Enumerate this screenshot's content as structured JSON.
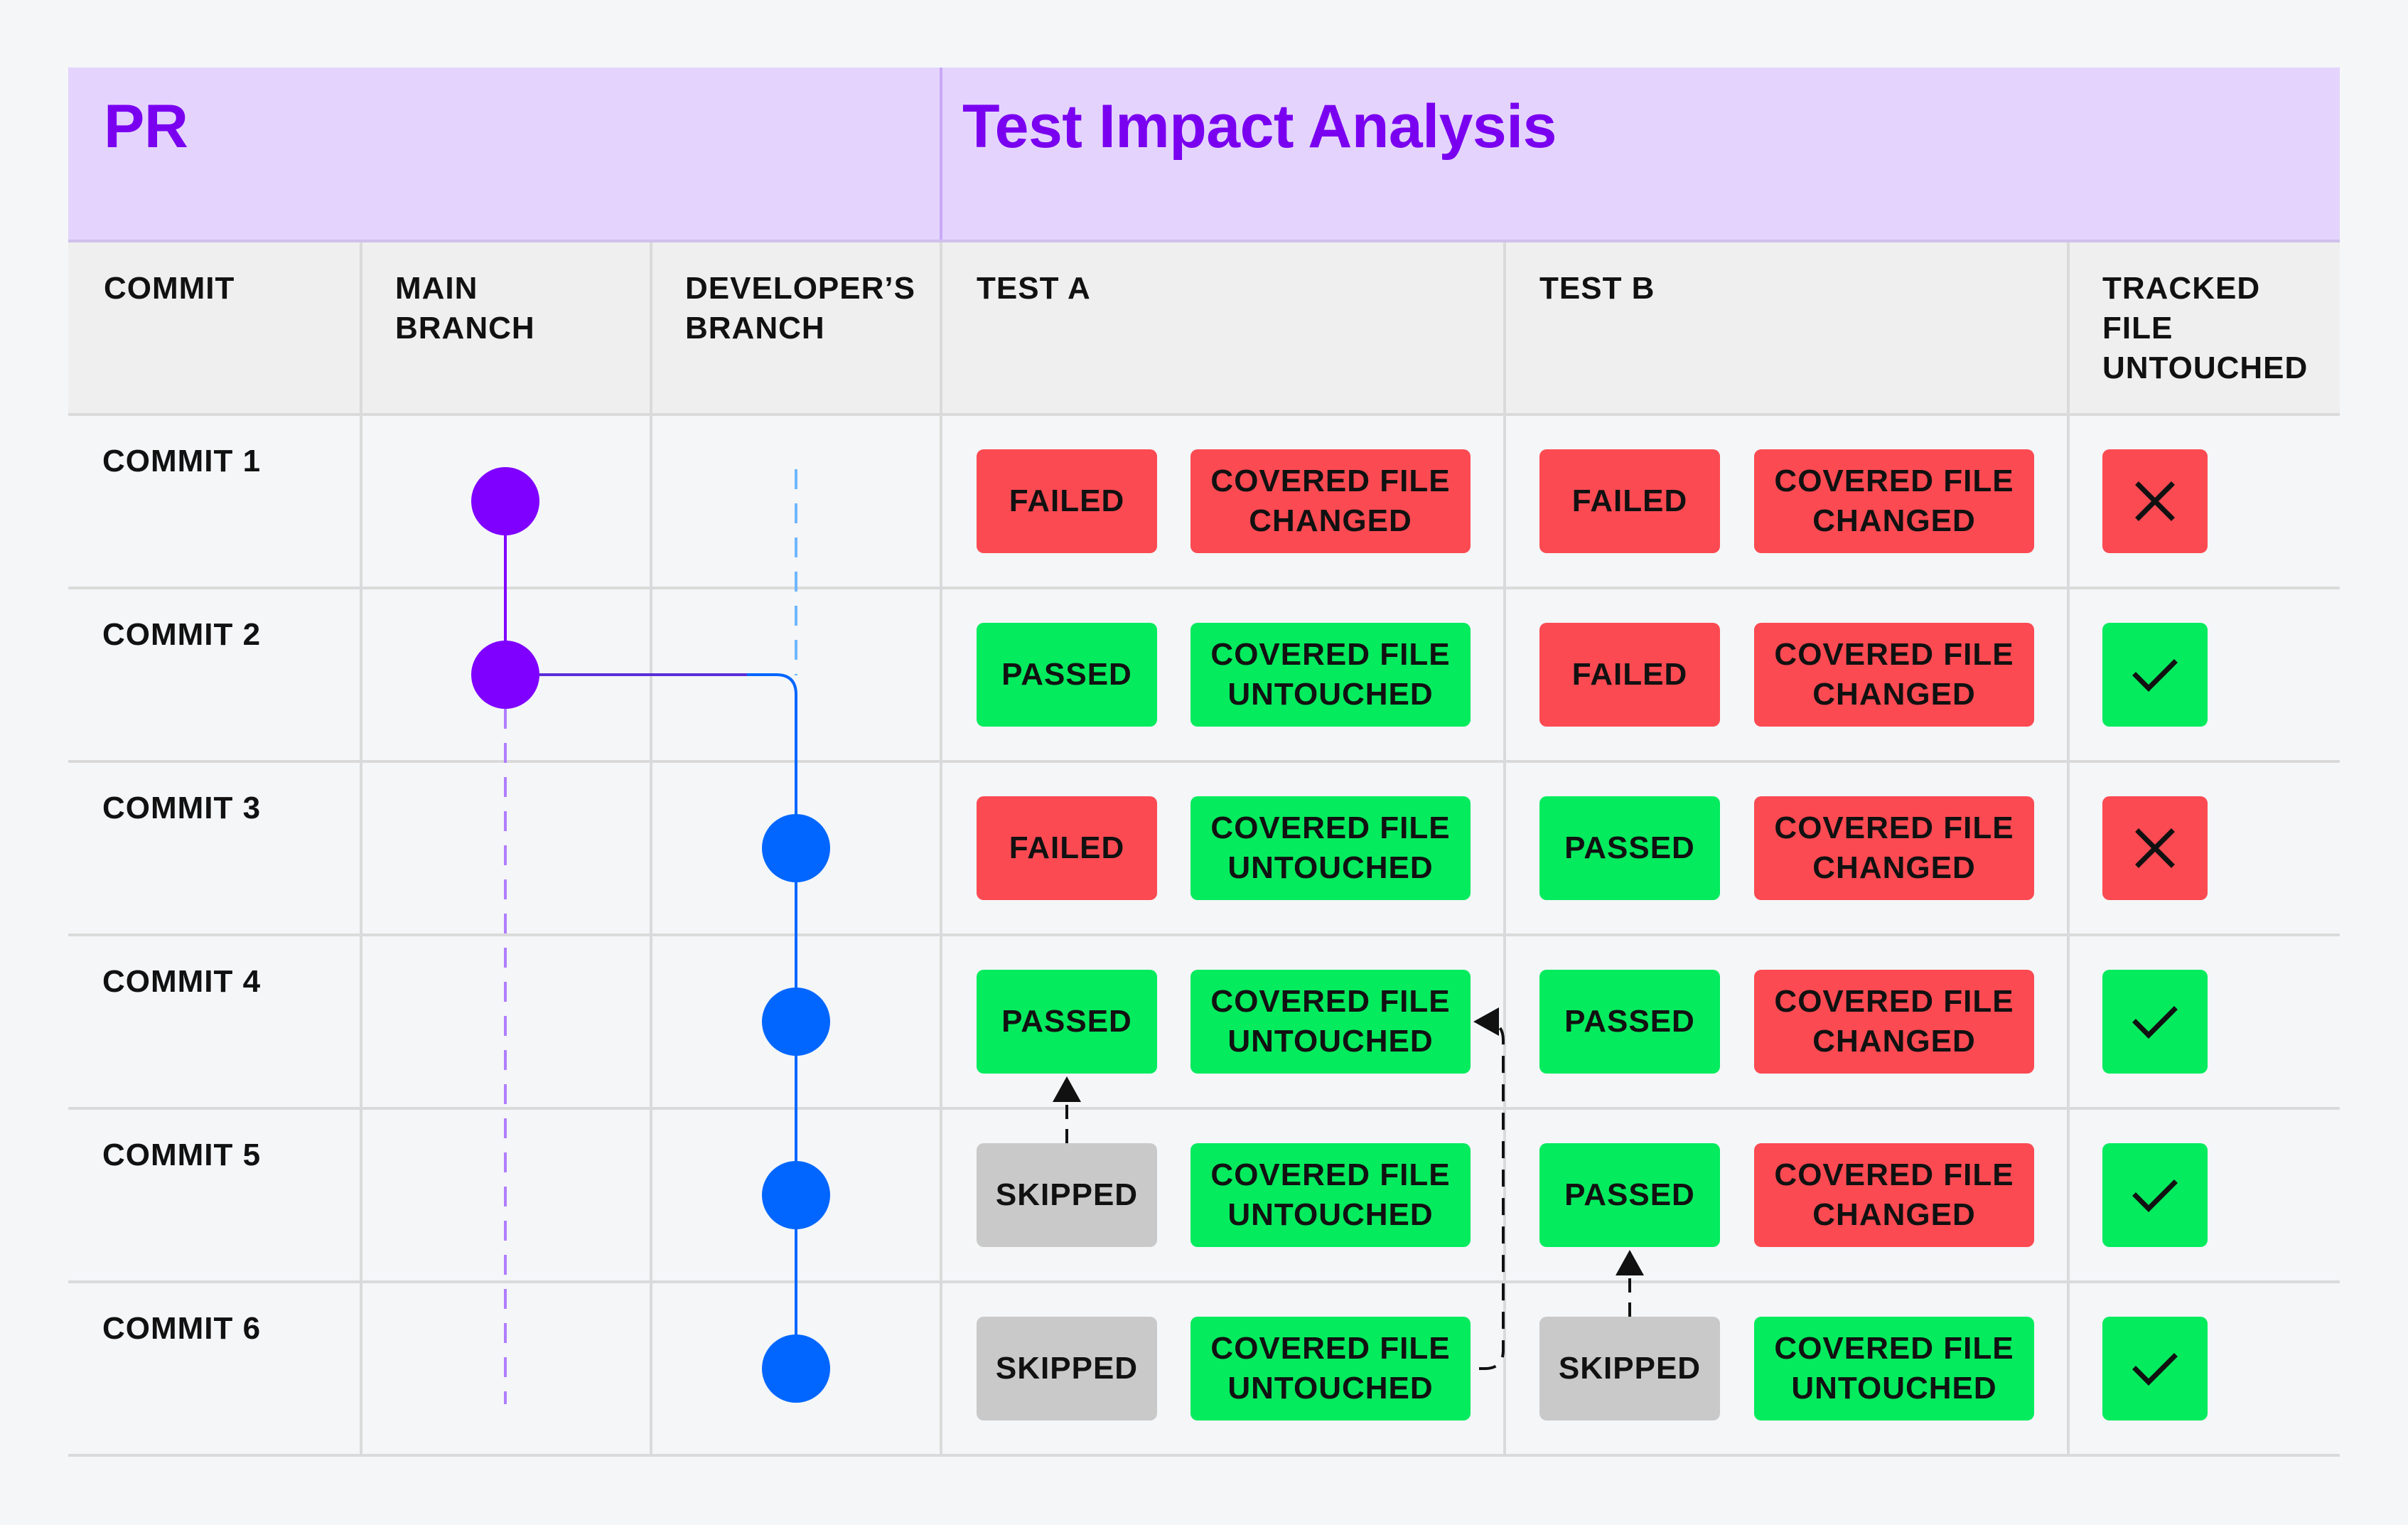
{
  "header": {
    "pr_title": "PR",
    "tia_title": "Test Impact Analysis"
  },
  "columns": {
    "commit": [
      "COMMIT"
    ],
    "main_branch": [
      "MAIN",
      "BRANCH"
    ],
    "developer_branch": [
      "DEVELOPER’S",
      "BRANCH"
    ],
    "test_a": [
      "TEST A"
    ],
    "test_b": [
      "TEST B"
    ],
    "tracked": [
      "TRACKED",
      "FILE",
      "UNTOUCHED"
    ]
  },
  "colors": {
    "header_bg": "#e4d4fd",
    "header_text": "#7a00f0",
    "colheader_bg": "#efefef",
    "failed": "#fc4a52",
    "passed": "#04eb5e",
    "skipped": "#c9c9c9",
    "main_branch": "#7f00ff",
    "developer_branch": "#0066ff",
    "dev_branch_dashed": "#6fb6ff",
    "main_branch_dashed": "#b07dff"
  },
  "rows": [
    {
      "commit": "COMMIT 1",
      "main_branch_commit": true,
      "developer_branch_commit": false,
      "test_a": {
        "status": "FAILED",
        "status_color": "red",
        "file": [
          "COVERED FILE",
          "CHANGED"
        ],
        "file_color": "red"
      },
      "test_b": {
        "status": "FAILED",
        "status_color": "red",
        "file": [
          "COVERED FILE",
          "CHANGED"
        ],
        "file_color": "red"
      },
      "tracked": {
        "icon": "x-icon",
        "color": "red"
      }
    },
    {
      "commit": "COMMIT 2",
      "main_branch_commit": true,
      "developer_branch_commit": false,
      "test_a": {
        "status": "PASSED",
        "status_color": "green",
        "file": [
          "COVERED FILE",
          "UNTOUCHED"
        ],
        "file_color": "green"
      },
      "test_b": {
        "status": "FAILED",
        "status_color": "red",
        "file": [
          "COVERED FILE",
          "CHANGED"
        ],
        "file_color": "red"
      },
      "tracked": {
        "icon": "check-icon",
        "color": "green"
      }
    },
    {
      "commit": "COMMIT 3",
      "main_branch_commit": false,
      "developer_branch_commit": true,
      "test_a": {
        "status": "FAILED",
        "status_color": "red",
        "file": [
          "COVERED FILE",
          "UNTOUCHED"
        ],
        "file_color": "green"
      },
      "test_b": {
        "status": "PASSED",
        "status_color": "green",
        "file": [
          "COVERED FILE",
          "CHANGED"
        ],
        "file_color": "red"
      },
      "tracked": {
        "icon": "x-icon",
        "color": "red"
      }
    },
    {
      "commit": "COMMIT 4",
      "main_branch_commit": false,
      "developer_branch_commit": true,
      "test_a": {
        "status": "PASSED",
        "status_color": "green",
        "file": [
          "COVERED FILE",
          "UNTOUCHED"
        ],
        "file_color": "green"
      },
      "test_b": {
        "status": "PASSED",
        "status_color": "green",
        "file": [
          "COVERED FILE",
          "CHANGED"
        ],
        "file_color": "red"
      },
      "tracked": {
        "icon": "check-icon",
        "color": "green"
      }
    },
    {
      "commit": "COMMIT 5",
      "main_branch_commit": false,
      "developer_branch_commit": true,
      "test_a": {
        "status": "SKIPPED",
        "status_color": "grey",
        "file": [
          "COVERED FILE",
          "UNTOUCHED"
        ],
        "file_color": "green"
      },
      "test_b": {
        "status": "PASSED",
        "status_color": "green",
        "file": [
          "COVERED FILE",
          "CHANGED"
        ],
        "file_color": "red"
      },
      "tracked": {
        "icon": "check-icon",
        "color": "green"
      }
    },
    {
      "commit": "COMMIT 6",
      "main_branch_commit": false,
      "developer_branch_commit": true,
      "test_a": {
        "status": "SKIPPED",
        "status_color": "grey",
        "file": [
          "COVERED FILE",
          "UNTOUCHED"
        ],
        "file_color": "green"
      },
      "test_b": {
        "status": "SKIPPED",
        "status_color": "grey",
        "file": [
          "COVERED FILE",
          "UNTOUCHED"
        ],
        "file_color": "green"
      },
      "tracked": {
        "icon": "check-icon",
        "color": "green"
      }
    }
  ],
  "reuse_arrows": [
    {
      "from": "COMMIT 5 / TEST A",
      "to": "COMMIT 4 / TEST A"
    },
    {
      "from": "COMMIT 6 / TEST B",
      "to": "COMMIT 5 / TEST B"
    },
    {
      "from": "COMMIT 6 / TEST A",
      "to": "COMMIT 4 / TEST A"
    }
  ]
}
